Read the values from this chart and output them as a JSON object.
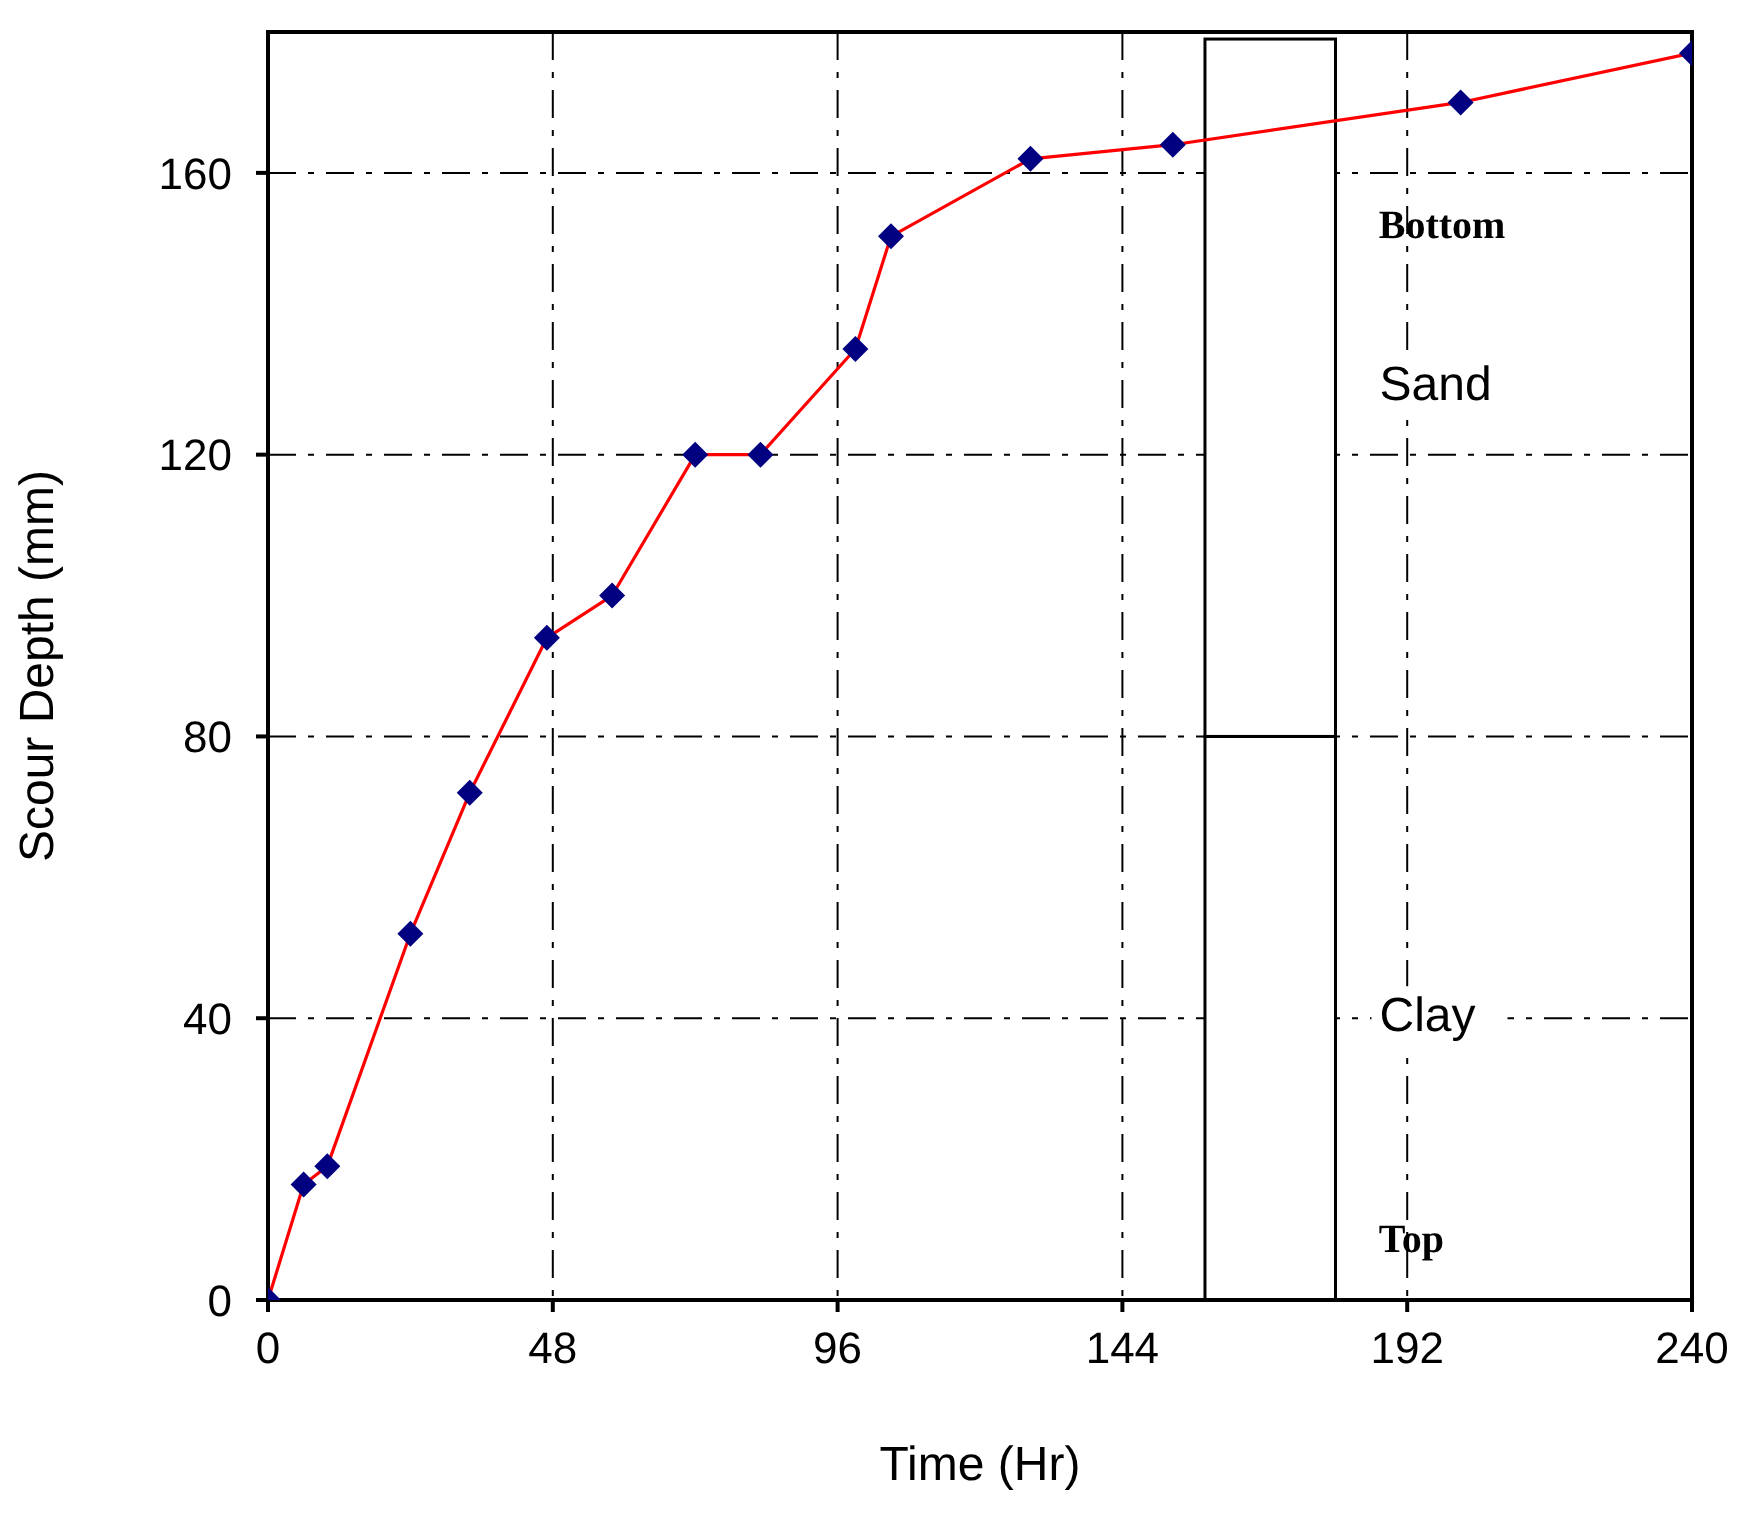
{
  "chart_data": {
    "type": "line",
    "xlabel": "Time (Hr)",
    "ylabel": "Scour Depth (mm)",
    "x": [
      0,
      6,
      10,
      24,
      34,
      47,
      58,
      72,
      83,
      99,
      105,
      128.5,
      152.5,
      201,
      240
    ],
    "series": [
      {
        "color": "#ff0000",
        "values": [
          0,
          16.4,
          19,
          52,
          72,
          94,
          100,
          120,
          120,
          135,
          151,
          162,
          164,
          170,
          177
        ]
      },
      {
        "type": "bar",
        "name": "Clay",
        "color": "#ffffff",
        "x": [
          169
        ],
        "values": [
          80
        ]
      },
      {
        "type": "bar",
        "name": "Sand",
        "color": "#ffffff",
        "x": [
          169
        ],
        "values": [
          99
        ]
      }
    ],
    "stacked": true,
    "xlim": [
      0,
      240
    ],
    "xticks": [
      0,
      48,
      96,
      144,
      192,
      240
    ],
    "ylim": [
      0,
      180
    ],
    "yticks": [
      0,
      40,
      80,
      120,
      160
    ],
    "grid": true,
    "marker": "diamond",
    "line_style": "solid",
    "annotations": [
      "Bottom",
      "Top"
    ]
  }
}
